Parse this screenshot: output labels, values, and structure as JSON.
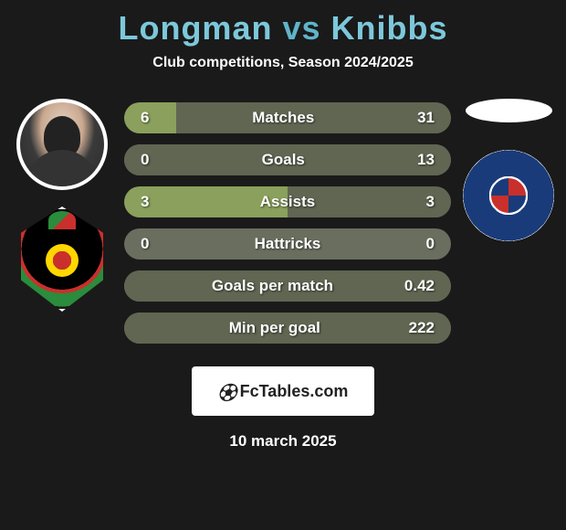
{
  "title": {
    "player1": "Longman",
    "vs": "vs",
    "player2": "Knibbs",
    "vs_color": "#5fb4c9",
    "name_color": "#7cc8da"
  },
  "subtitle": "Club competitions, Season 2024/2025",
  "stats": {
    "rows": [
      {
        "label": "Matches",
        "left": "6",
        "right": "31",
        "left_pct": 16,
        "right_pct": 84
      },
      {
        "label": "Goals",
        "left": "0",
        "right": "13",
        "left_pct": 0,
        "right_pct": 100
      },
      {
        "label": "Assists",
        "left": "3",
        "right": "3",
        "left_pct": 50,
        "right_pct": 50
      },
      {
        "label": "Hattricks",
        "left": "0",
        "right": "0",
        "left_pct": 0,
        "right_pct": 0
      },
      {
        "label": "Goals per match",
        "left": "",
        "right": "0.42",
        "left_pct": 0,
        "right_pct": 100
      },
      {
        "label": "Min per goal",
        "left": "",
        "right": "222",
        "left_pct": 0,
        "right_pct": 100
      }
    ],
    "base_color": "#6a6e5f",
    "left_fill_color": "#8aa05c",
    "right_fill_color": "#606652"
  },
  "footer": {
    "brand": "FcTables.com",
    "date": "10 march 2025"
  },
  "background_color": "#1a1a1a"
}
